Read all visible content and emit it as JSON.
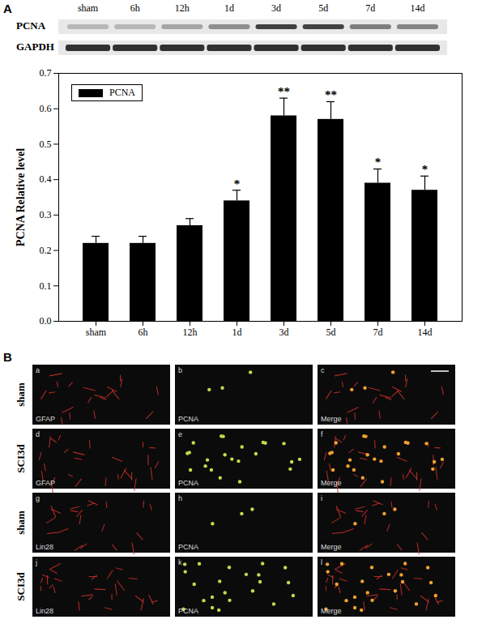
{
  "panel_labels": [
    "A",
    "B"
  ],
  "blot": {
    "rows": [
      "PCNA",
      "GAPDH"
    ]
  },
  "chart_data": {
    "type": "bar",
    "categories": [
      "sham",
      "6h",
      "12h",
      "1d",
      "3d",
      "5d",
      "7d",
      "14d"
    ],
    "series": [
      {
        "name": "PCNA",
        "color": "#000000",
        "values": [
          0.22,
          0.22,
          0.27,
          0.34,
          0.58,
          0.57,
          0.39,
          0.37
        ],
        "errors": [
          0.02,
          0.02,
          0.02,
          0.03,
          0.05,
          0.05,
          0.04,
          0.04
        ],
        "annotations": [
          null,
          null,
          null,
          "*",
          "**",
          "**",
          "*",
          "*"
        ]
      }
    ],
    "ylabel": "PCNA Relative level",
    "ylim": [
      0,
      0.7
    ],
    "yticks": [
      {
        "value": 0,
        "label": "0.0"
      },
      0.1,
      0.2,
      0.3,
      0.4,
      0.5,
      0.6,
      0.7
    ],
    "legend": "top-left"
  },
  "images": {
    "rows": [
      {
        "label": "sham",
        "cells": [
          {
            "letter": "a",
            "stain": "GFAP"
          },
          {
            "letter": "b",
            "stain": "PCNA"
          },
          {
            "letter": "c",
            "stain": "Merge"
          }
        ]
      },
      {
        "label": "SCI3d",
        "cells": [
          {
            "letter": "d",
            "stain": "GFAP"
          },
          {
            "letter": "e",
            "stain": "PCNA"
          },
          {
            "letter": "f",
            "stain": "Merge"
          }
        ]
      },
      {
        "label": "sham",
        "cells": [
          {
            "letter": "g",
            "stain": "Lin28"
          },
          {
            "letter": "h",
            "stain": "PCNA"
          },
          {
            "letter": "i",
            "stain": "Merge"
          }
        ]
      },
      {
        "label": "SCI3d",
        "cells": [
          {
            "letter": "j",
            "stain": "Lin28"
          },
          {
            "letter": "k",
            "stain": "PCNA"
          },
          {
            "letter": "l",
            "stain": "Merge"
          }
        ]
      }
    ]
  }
}
